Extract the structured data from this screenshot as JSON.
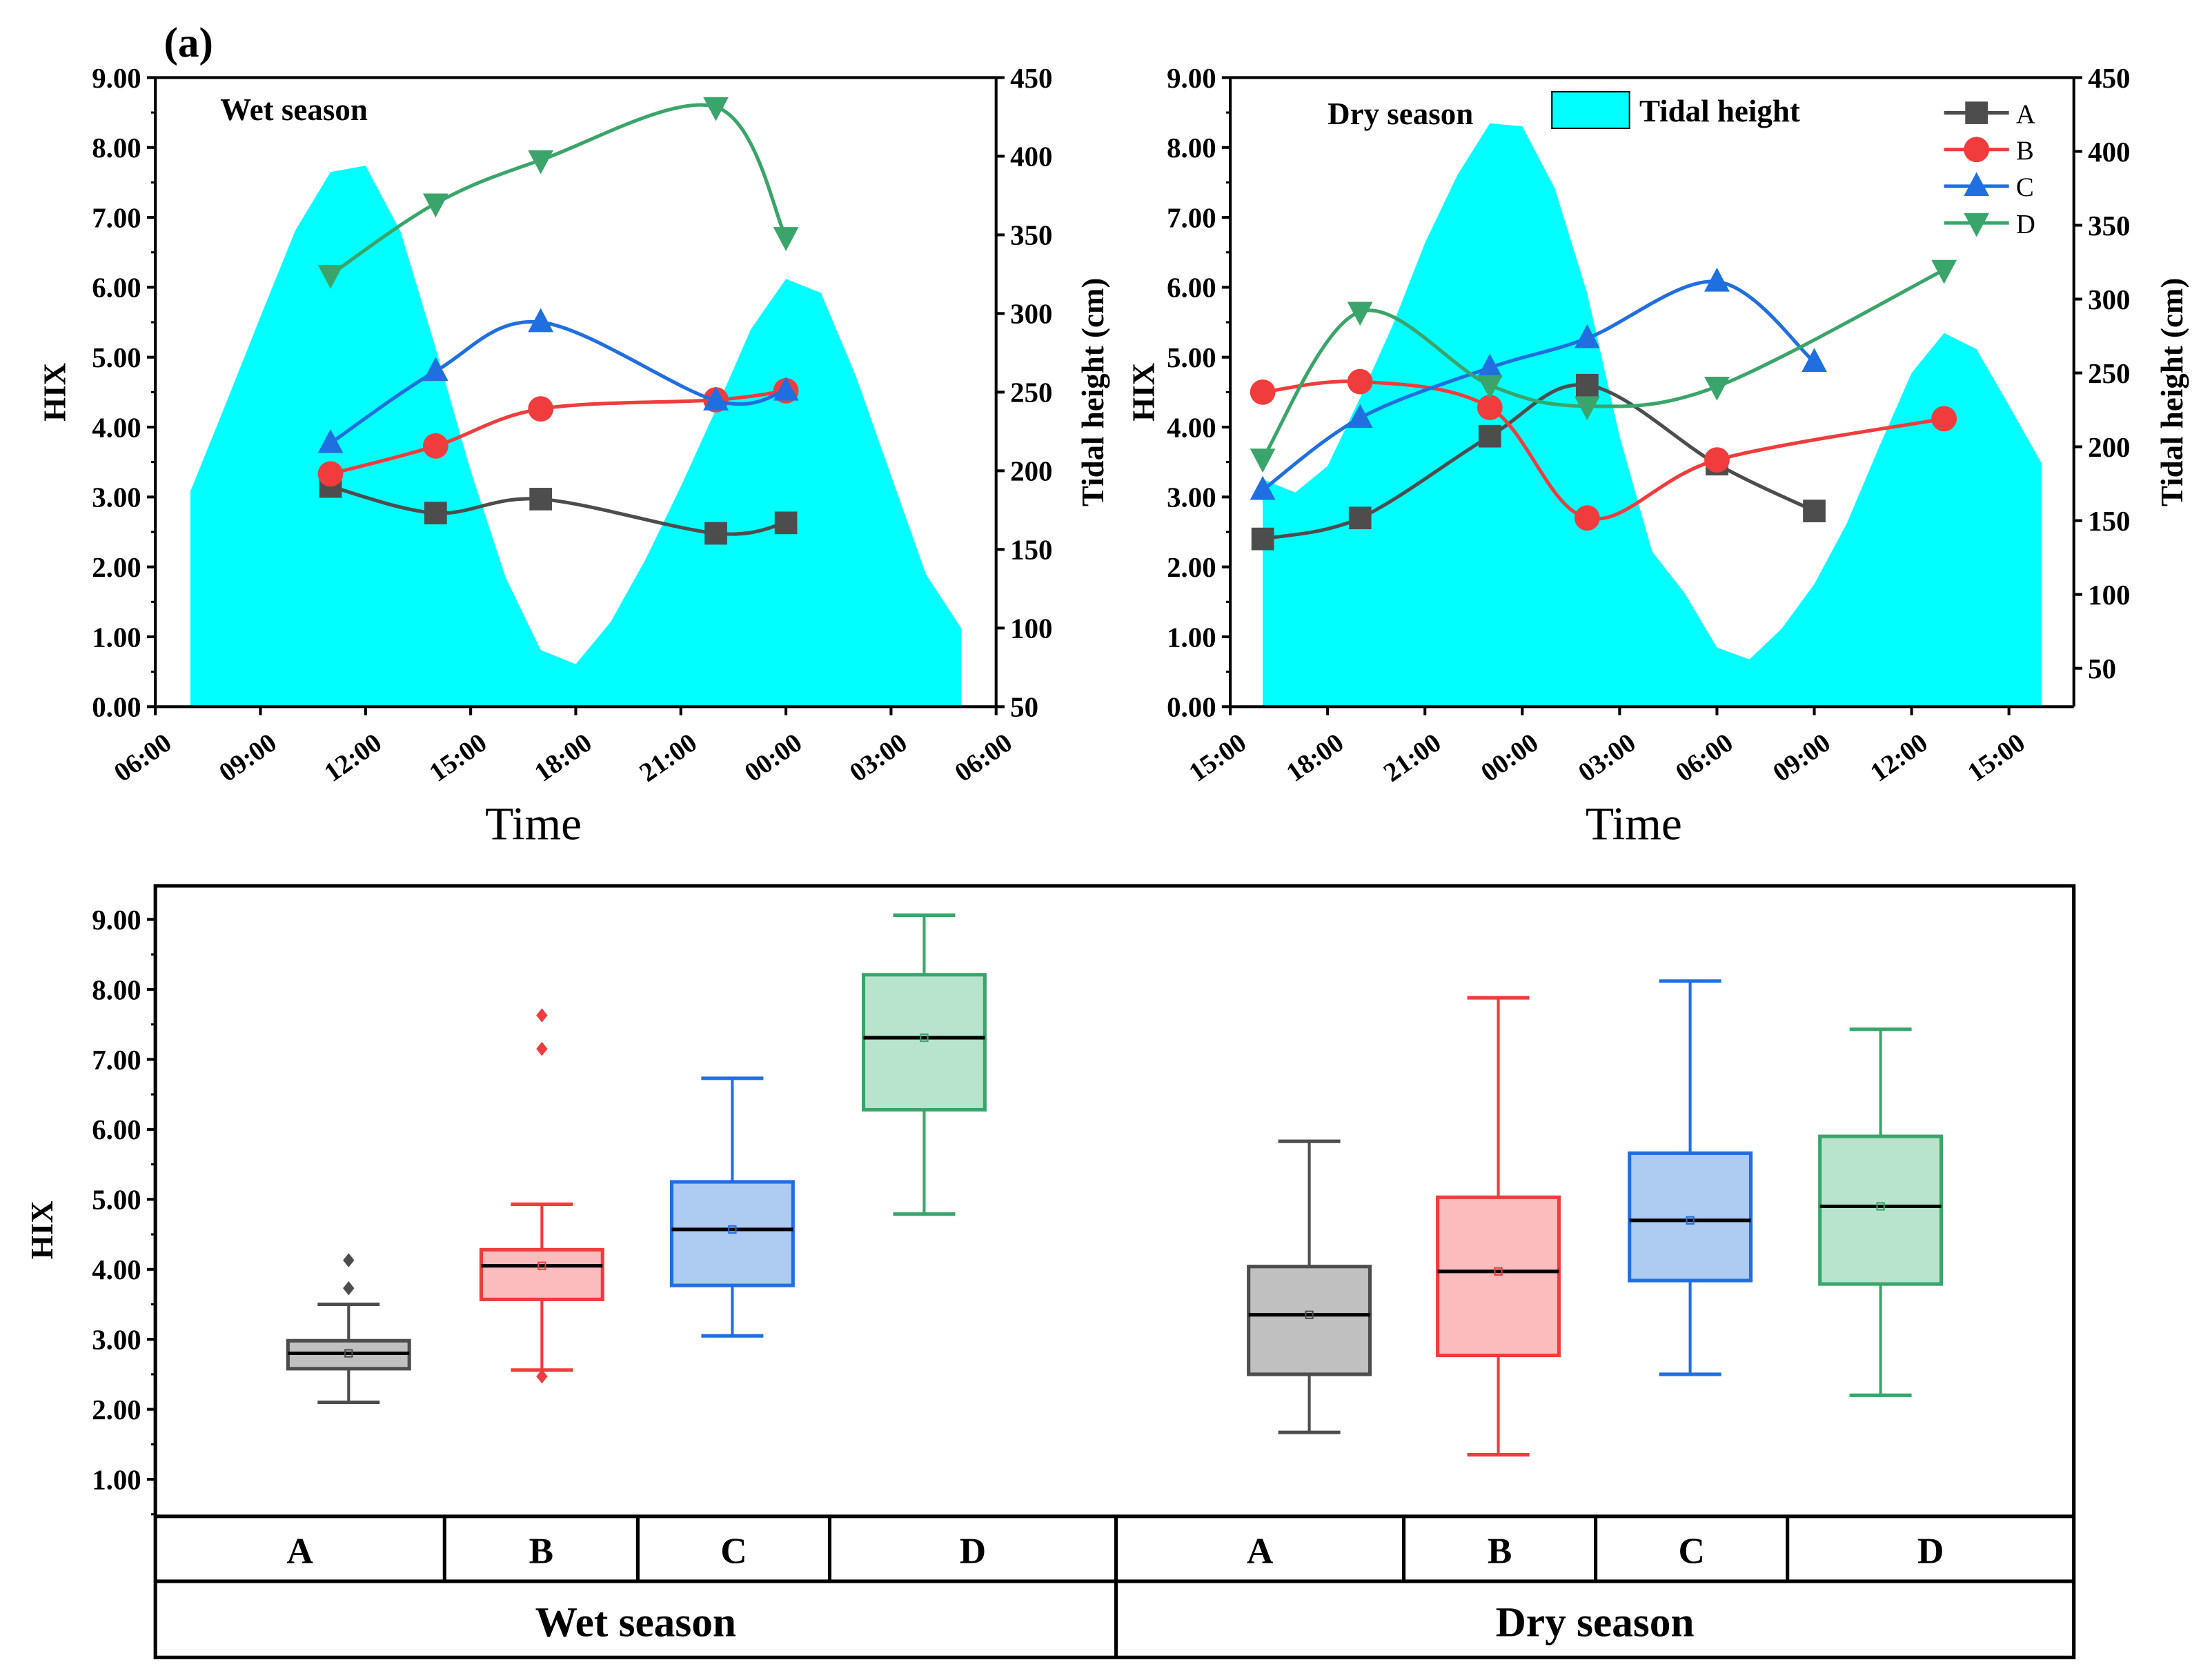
{
  "panel_label": "(a)",
  "chart_data": [
    {
      "type": "line",
      "title": "Wet season",
      "xlabel": "Time",
      "ylabel": "HIX",
      "y2label": "Tidal height (cm)",
      "xlim_hours": [
        0,
        24
      ],
      "x_tick_hours": [
        0,
        3,
        6,
        9,
        12,
        15,
        18,
        21,
        24
      ],
      "x_tick_labels": [
        "06:00",
        "09:00",
        "12:00",
        "15:00",
        "18:00",
        "21:00",
        "00:00",
        "03:00",
        "06:00"
      ],
      "ylim": [
        0,
        9
      ],
      "y_ticks": [
        0,
        1,
        2,
        3,
        4,
        5,
        6,
        7,
        8,
        9
      ],
      "y_tick_labels": [
        "0.00",
        "1.00",
        "2.00",
        "3.00",
        "4.00",
        "5.00",
        "6.00",
        "7.00",
        "8.00",
        "9.00"
      ],
      "y2lim": [
        50,
        450
      ],
      "y2_ticks": [
        50,
        100,
        150,
        200,
        250,
        300,
        350,
        400,
        450
      ],
      "y2_tick_labels": [
        "50",
        "100",
        "150",
        "200",
        "250",
        "300",
        "350",
        "400",
        "450"
      ],
      "tidal": {
        "name": "Tidal height",
        "x_hours": [
          1,
          2,
          3,
          4,
          5,
          6,
          7,
          8,
          9,
          10,
          11,
          12,
          13,
          14,
          15,
          16,
          17,
          18,
          19,
          20,
          21,
          22,
          23
        ],
        "values": [
          187,
          242,
          298,
          353,
          390,
          394,
          352,
          278,
          200,
          132,
          86,
          77,
          104,
          144,
          190,
          239,
          290,
          322,
          313,
          260,
          197,
          134,
          100
        ]
      },
      "series": [
        {
          "name": "A",
          "x_hours": [
            5,
            8,
            11,
            16,
            18
          ],
          "values": [
            3.15,
            2.77,
            2.97,
            2.48,
            2.63
          ]
        },
        {
          "name": "B",
          "x_hours": [
            5,
            8,
            11,
            16,
            18
          ],
          "values": [
            3.33,
            3.73,
            4.26,
            4.39,
            4.52
          ]
        },
        {
          "name": "C",
          "x_hours": [
            5,
            8,
            11,
            16,
            18
          ],
          "values": [
            3.77,
            4.8,
            5.5,
            4.38,
            4.52
          ]
        },
        {
          "name": "D",
          "x_hours": [
            5,
            8,
            11,
            16,
            18
          ],
          "values": [
            6.18,
            7.2,
            7.82,
            8.58,
            6.72
          ]
        }
      ]
    },
    {
      "type": "line",
      "title": "Dry season",
      "xlabel": "Time",
      "ylabel": "HIX",
      "y2label": "Tidal height (cm)",
      "legend_position": "top-right",
      "xlim_hours": [
        0,
        26
      ],
      "x_tick_hours": [
        0,
        3,
        6,
        9,
        12,
        15,
        18,
        21,
        24
      ],
      "x_tick_labels": [
        "15:00",
        "18:00",
        "21:00",
        "00:00",
        "03:00",
        "06:00",
        "09:00",
        "12:00",
        "15:00"
      ],
      "ylim": [
        0,
        9
      ],
      "y_ticks": [
        0,
        1,
        2,
        3,
        4,
        5,
        6,
        7,
        8,
        9
      ],
      "y_tick_labels": [
        "0.00",
        "1.00",
        "2.00",
        "3.00",
        "4.00",
        "5.00",
        "6.00",
        "7.00",
        "8.00",
        "9.00"
      ],
      "y2lim": [
        24,
        450
      ],
      "y2_ticks": [
        50,
        100,
        150,
        200,
        250,
        300,
        350,
        400,
        450
      ],
      "y2_tick_labels": [
        "50",
        "100",
        "150",
        "200",
        "250",
        "300",
        "350",
        "400",
        "450"
      ],
      "tidal": {
        "name": "Tidal height",
        "x_hours": [
          1,
          2,
          3,
          4,
          5,
          6,
          7,
          8,
          9,
          10,
          11,
          12,
          13,
          14,
          15,
          16,
          17,
          18,
          19,
          20,
          21,
          22,
          23,
          24,
          25
        ],
        "values": [
          178,
          169,
          187,
          233,
          282,
          338,
          384,
          419,
          417,
          375,
          304,
          207,
          129,
          101,
          64,
          56,
          77,
          107,
          148,
          200,
          250,
          277,
          266,
          228,
          189
        ]
      },
      "series": [
        {
          "name": "A",
          "x_hours": [
            1,
            4,
            8,
            11,
            15,
            18
          ],
          "values": [
            2.4,
            2.7,
            3.87,
            4.6,
            3.47,
            2.8
          ]
        },
        {
          "name": "B",
          "x_hours": [
            1,
            4,
            8,
            11,
            15,
            22
          ],
          "values": [
            4.5,
            4.65,
            4.28,
            2.7,
            3.53,
            4.12
          ]
        },
        {
          "name": "C",
          "x_hours": [
            1,
            4,
            8,
            11,
            15,
            18
          ],
          "values": [
            3.1,
            4.13,
            4.85,
            5.27,
            6.08,
            4.93
          ]
        },
        {
          "name": "D",
          "x_hours": [
            1,
            4,
            8,
            11,
            15,
            22
          ],
          "values": [
            3.55,
            5.65,
            4.6,
            4.3,
            4.58,
            6.25
          ]
        }
      ]
    },
    {
      "type": "box",
      "ylabel": "HIX",
      "ylim": [
        0.47,
        9.48
      ],
      "y_ticks": [
        1,
        2,
        3,
        4,
        5,
        6,
        7,
        8,
        9
      ],
      "y_tick_labels": [
        "1.00",
        "2.00",
        "3.00",
        "4.00",
        "5.00",
        "6.00",
        "7.00",
        "8.00",
        "9.00"
      ],
      "groups": [
        {
          "name": "Wet season",
          "boxes": [
            {
              "name": "A",
              "min": 2.1,
              "q1": 2.58,
              "median": 2.8,
              "q3": 2.98,
              "max": 3.5,
              "mean": 2.8,
              "outliers": [
                3.73,
                4.13
              ]
            },
            {
              "name": "B",
              "min": 2.56,
              "q1": 3.57,
              "median": 4.05,
              "q3": 4.28,
              "max": 4.93,
              "mean": 4.05,
              "outliers": [
                2.47,
                7.15,
                7.63
              ]
            },
            {
              "name": "C",
              "min": 3.05,
              "q1": 3.77,
              "median": 4.57,
              "q3": 5.25,
              "max": 6.73,
              "mean": 4.57,
              "outliers": []
            },
            {
              "name": "D",
              "min": 4.79,
              "q1": 6.28,
              "median": 7.31,
              "q3": 8.21,
              "max": 9.06,
              "mean": 7.31,
              "outliers": []
            }
          ]
        },
        {
          "name": "Dry season",
          "boxes": [
            {
              "name": "A",
              "min": 1.67,
              "q1": 2.5,
              "median": 3.35,
              "q3": 4.04,
              "max": 5.83,
              "mean": 3.35,
              "outliers": []
            },
            {
              "name": "B",
              "min": 1.35,
              "q1": 2.77,
              "median": 3.97,
              "q3": 5.03,
              "max": 7.88,
              "mean": 3.97,
              "outliers": []
            },
            {
              "name": "C",
              "min": 2.5,
              "q1": 3.84,
              "median": 4.7,
              "q3": 5.66,
              "max": 8.12,
              "mean": 4.7,
              "outliers": []
            },
            {
              "name": "D",
              "min": 2.2,
              "q1": 3.79,
              "median": 4.9,
              "q3": 5.9,
              "max": 7.43,
              "mean": 4.9,
              "outliers": []
            }
          ]
        }
      ]
    }
  ],
  "colors": {
    "A": "#4d4d4d",
    "B": "#f03c3c",
    "C": "#1f6fe0",
    "D": "#3aa56a",
    "tidal": "#00ffff",
    "box_fill_A": "#c0c0c0",
    "box_fill_B": "#fbbcbd",
    "box_fill_C": "#aecbf2",
    "box_fill_D": "#b8e3cc"
  }
}
